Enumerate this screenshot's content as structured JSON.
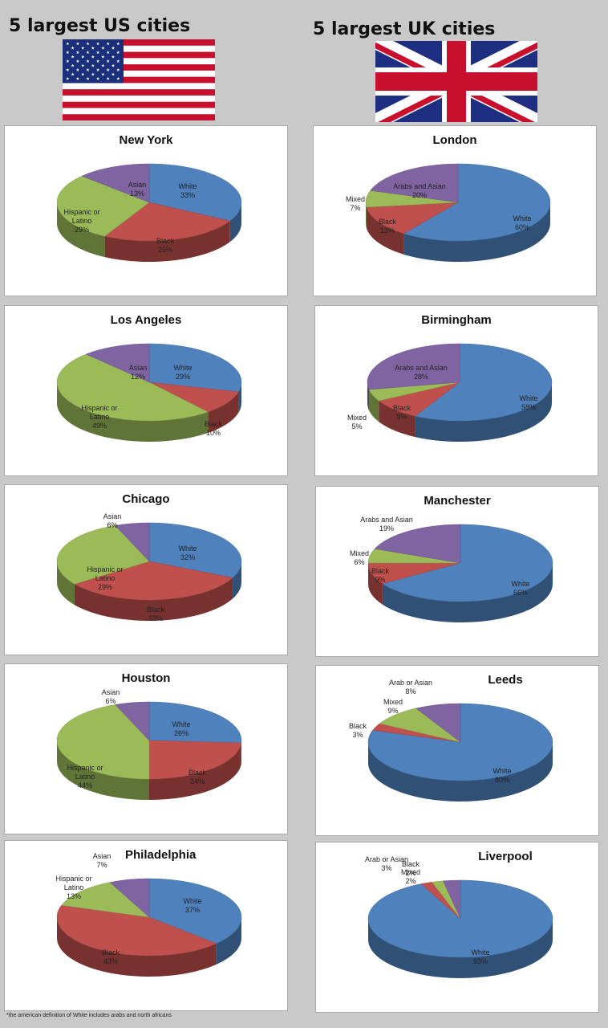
{
  "headings": {
    "us": "5 largest US cities",
    "uk": "5 largest UK cities"
  },
  "footnote": "*the american definition of White includes arabs and north africans",
  "colors": {
    "white": "#4f81bd",
    "black": "#c0504d",
    "hispanic": "#9bbb59",
    "asian": "#8064a2"
  },
  "chart_data": [
    {
      "type": "pie",
      "title": "New York",
      "slices": [
        {
          "label": "White",
          "value": 33,
          "display": "33%",
          "color": "white"
        },
        {
          "label": "Black",
          "value": 25,
          "display": "25%",
          "color": "black"
        },
        {
          "label": "Hispanic or Latino",
          "value": 29,
          "display": "29%",
          "color": "hispanic"
        },
        {
          "label": "Asian",
          "value": 13,
          "display": "13%",
          "color": "asian"
        }
      ]
    },
    {
      "type": "pie",
      "title": "Los Angeles",
      "slices": [
        {
          "label": "White",
          "value": 29,
          "display": "29%",
          "color": "white"
        },
        {
          "label": "Black",
          "value": 10,
          "display": "10%",
          "color": "black"
        },
        {
          "label": "Hispanic or Latino",
          "value": 49,
          "display": "49%",
          "color": "hispanic"
        },
        {
          "label": "Asian",
          "value": 12,
          "display": "12%",
          "color": "asian"
        }
      ]
    },
    {
      "type": "pie",
      "title": "Chicago",
      "slices": [
        {
          "label": "White",
          "value": 32,
          "display": "32%",
          "color": "white"
        },
        {
          "label": "Black",
          "value": 33,
          "display": "33%",
          "color": "black"
        },
        {
          "label": "Hispanic or Latino",
          "value": 29,
          "display": "29%",
          "color": "hispanic"
        },
        {
          "label": "Asian",
          "value": 6,
          "display": "6%",
          "color": "asian"
        }
      ]
    },
    {
      "type": "pie",
      "title": "Houston",
      "slices": [
        {
          "label": "White",
          "value": 26,
          "display": "26%",
          "color": "white"
        },
        {
          "label": "Black",
          "value": 24,
          "display": "24%",
          "color": "black"
        },
        {
          "label": "Hispanic or Latino",
          "value": 44,
          "display": "44%",
          "color": "hispanic"
        },
        {
          "label": "Asian",
          "value": 6,
          "display": "6%",
          "color": "asian"
        }
      ]
    },
    {
      "type": "pie",
      "title": "Philadelphia",
      "slices": [
        {
          "label": "White",
          "value": 37,
          "display": "37%",
          "color": "white"
        },
        {
          "label": "Black",
          "value": 43,
          "display": "43%",
          "color": "black"
        },
        {
          "label": "Hispanic or Latino",
          "value": 13,
          "display": "13%",
          "color": "hispanic"
        },
        {
          "label": "Asian",
          "value": 7,
          "display": "7%",
          "color": "asian"
        }
      ]
    },
    {
      "type": "pie",
      "title": "London",
      "slices": [
        {
          "label": "White",
          "value": 60,
          "display": "60%",
          "color": "white"
        },
        {
          "label": "Black",
          "value": 13,
          "display": "13%",
          "color": "black"
        },
        {
          "label": "Mixed",
          "value": 7,
          "display": "7%",
          "color": "hispanic"
        },
        {
          "label": "Arabs and Asian",
          "value": 20,
          "display": "20%",
          "color": "asian"
        }
      ]
    },
    {
      "type": "pie",
      "title": "Birmingham",
      "slices": [
        {
          "label": "White",
          "value": 58,
          "display": "58%",
          "color": "white"
        },
        {
          "label": "Black",
          "value": 9,
          "display": "9%",
          "color": "black"
        },
        {
          "label": "Mixed",
          "value": 5,
          "display": "5%",
          "color": "hispanic"
        },
        {
          "label": "Arabs and Asian",
          "value": 28,
          "display": "28%",
          "color": "asian"
        }
      ]
    },
    {
      "type": "pie",
      "title": "Manchester",
      "slices": [
        {
          "label": "White",
          "value": 66,
          "display": "66%",
          "color": "white"
        },
        {
          "label": "Black",
          "value": 9,
          "display": "9%",
          "color": "black"
        },
        {
          "label": "Mixed",
          "value": 6,
          "display": "6%",
          "color": "hispanic"
        },
        {
          "label": "Arabs and Asian",
          "value": 19,
          "display": "19%",
          "color": "asian"
        }
      ]
    },
    {
      "type": "pie",
      "title": "Leeds",
      "slices": [
        {
          "label": "White",
          "value": 80,
          "display": "80%",
          "color": "white"
        },
        {
          "label": "Black",
          "value": 3,
          "display": "3%",
          "color": "black"
        },
        {
          "label": "Mixed",
          "value": 9,
          "display": "9%",
          "color": "hispanic"
        },
        {
          "label": "Arab or Asian",
          "value": 8,
          "display": "8%",
          "color": "asian"
        }
      ]
    },
    {
      "type": "pie",
      "title": "Liverpool",
      "slices": [
        {
          "label": "White",
          "value": 93,
          "display": "93%",
          "color": "white"
        },
        {
          "label": "Black",
          "value": 2,
          "display": "2%",
          "color": "black"
        },
        {
          "label": "Mixed",
          "value": 2,
          "display": "2%",
          "color": "hispanic"
        },
        {
          "label": "Arab or Asian",
          "value": 3,
          "display": "3%",
          "color": "asian"
        }
      ]
    }
  ]
}
